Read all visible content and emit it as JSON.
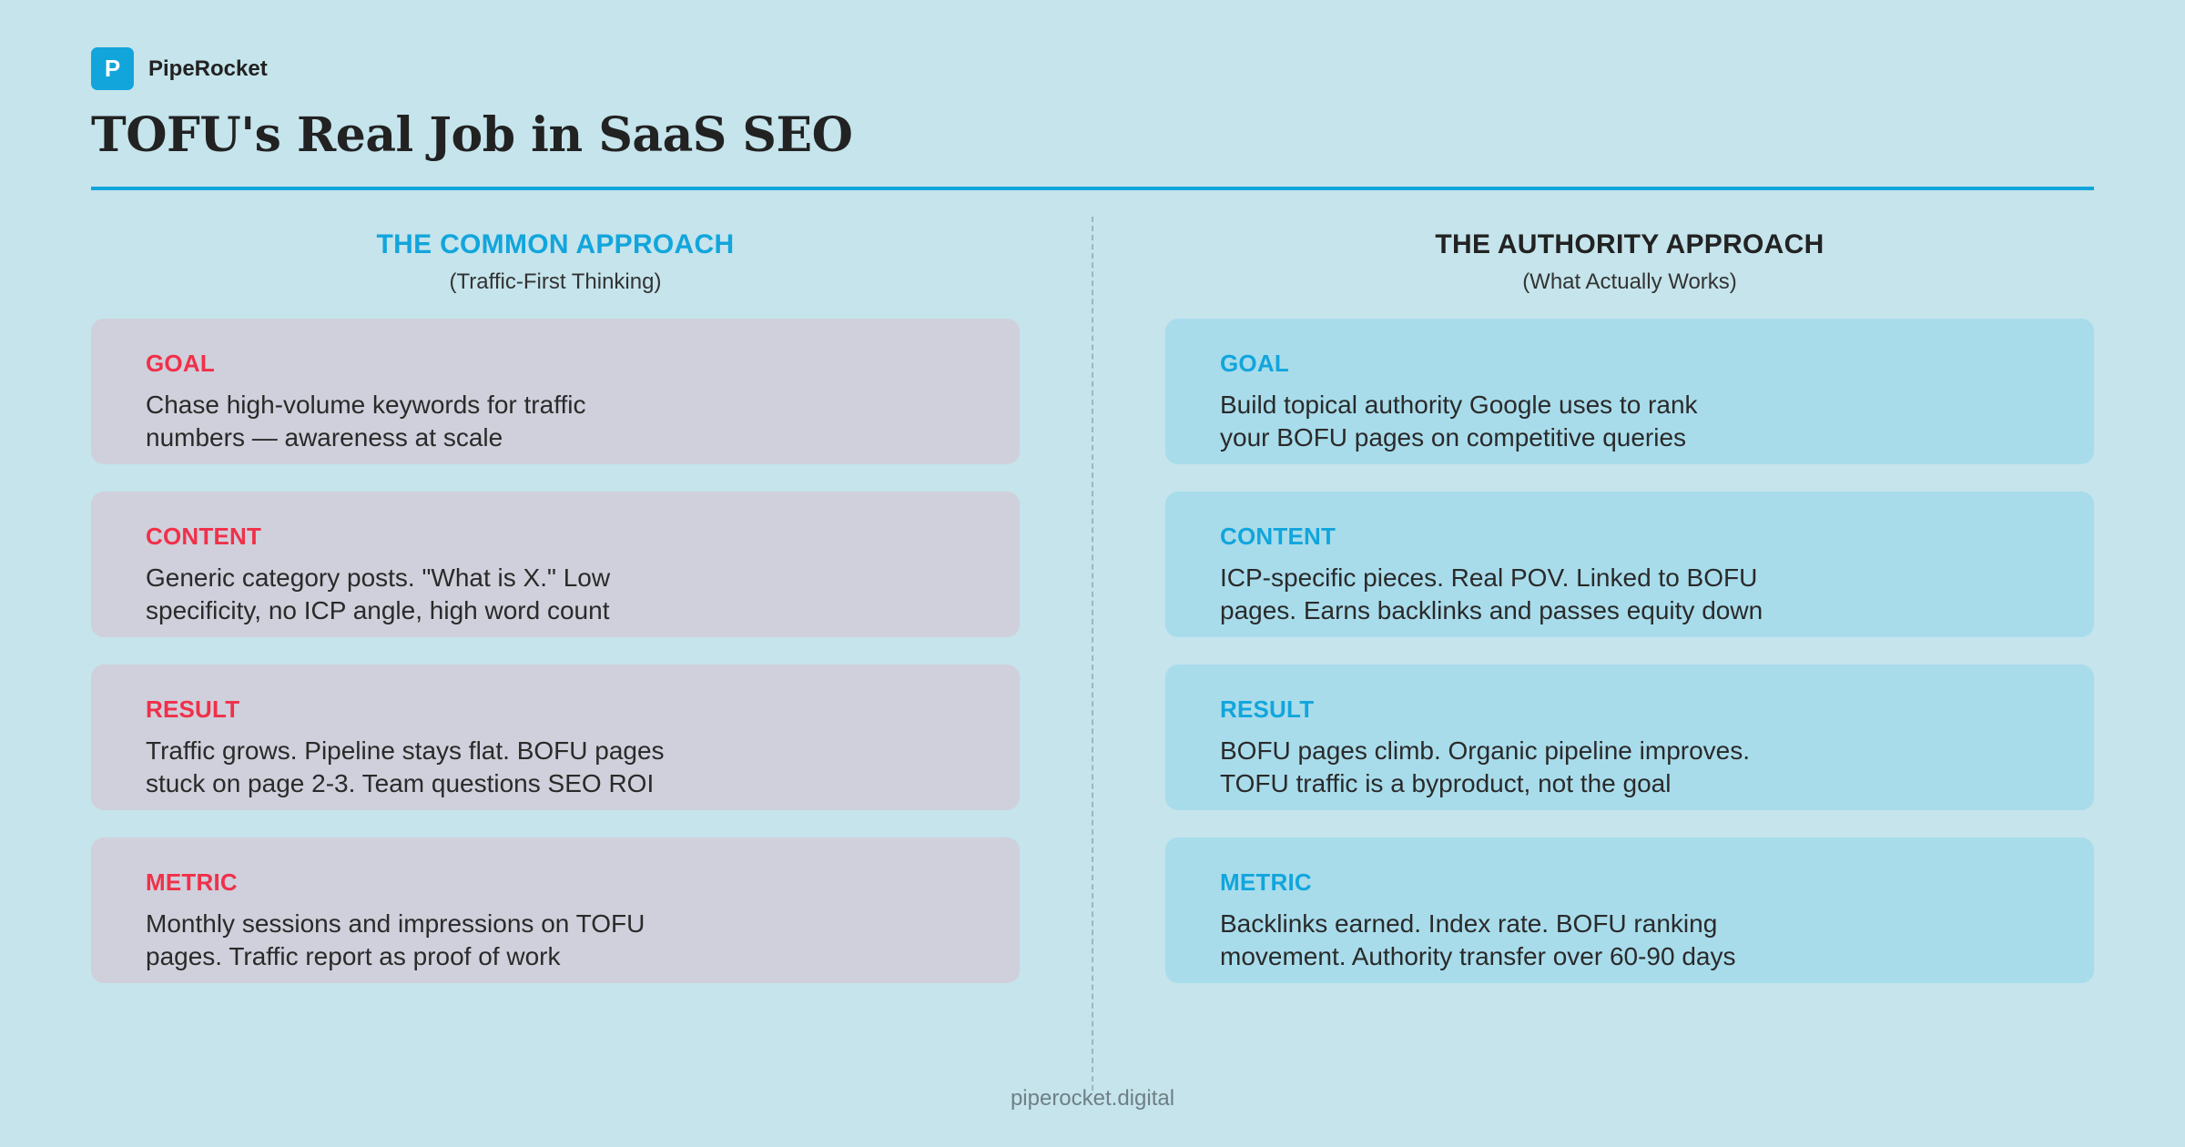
{
  "brand": {
    "mark": "P",
    "name": "PipeRocket"
  },
  "title": "TOFU's Real Job in SaaS SEO",
  "columns": [
    {
      "title": "THE COMMON APPROACH",
      "subtitle": "(Traffic-First Thinking)",
      "cards": [
        {
          "label": "GOAL",
          "text": "Chase high-volume keywords for traffic\nnumbers — awareness at scale"
        },
        {
          "label": "CONTENT",
          "text": "Generic category posts. \"What is X.\" Low\nspecificity, no ICP angle, high word count"
        },
        {
          "label": "RESULT",
          "text": "Traffic grows. Pipeline stays flat. BOFU pages\nstuck on page 2-3. Team questions SEO ROI"
        },
        {
          "label": "METRIC",
          "text": "Monthly sessions and impressions on TOFU\npages. Traffic report as proof of work"
        }
      ]
    },
    {
      "title": "THE AUTHORITY APPROACH",
      "subtitle": "(What Actually Works)",
      "cards": [
        {
          "label": "GOAL",
          "text": "Build topical authority Google uses to rank\nyour BOFU pages on competitive queries"
        },
        {
          "label": "CONTENT",
          "text": "ICP-specific pieces. Real POV. Linked to BOFU\npages. Earns backlinks and passes equity down"
        },
        {
          "label": "RESULT",
          "text": "BOFU pages climb. Organic pipeline improves.\nTOFU traffic is a byproduct, not the goal"
        },
        {
          "label": "METRIC",
          "text": "Backlinks earned. Index rate. BOFU ranking\nmovement. Authority transfer over 60-90 days"
        }
      ]
    }
  ],
  "footer": "piperocket.digital",
  "colors": {
    "background": "#c5e4ec",
    "accent_blue": "#12a5dc",
    "accent_red": "#f0304a",
    "common_card": "#cfd0db",
    "authority_card": "#a8dceb"
  }
}
